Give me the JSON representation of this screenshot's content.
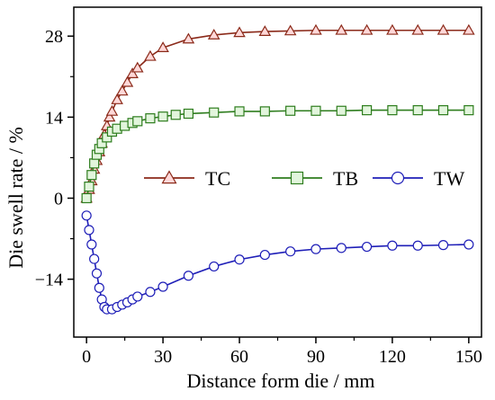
{
  "chart_data": {
    "type": "line",
    "xlabel": "Distance form die / mm",
    "ylabel": "Die swell rate / %",
    "xlim": [
      -5,
      155
    ],
    "ylim": [
      -24,
      33
    ],
    "xticks": [
      0,
      30,
      60,
      90,
      120,
      150
    ],
    "yticks": [
      -14,
      0,
      14,
      28
    ],
    "y_tick_labels": [
      "−14",
      "0",
      "14",
      "28"
    ],
    "grid": false,
    "legend_position": "center",
    "series": [
      {
        "name": "TC",
        "color": "#8B2A1A",
        "marker": "triangle",
        "marker_fill": "#FFD8D8",
        "x": [
          0,
          1,
          2,
          3,
          4,
          5,
          6,
          7,
          8,
          9,
          10,
          12,
          14,
          16,
          18,
          20,
          25,
          30,
          40,
          50,
          60,
          70,
          80,
          90,
          100,
          110,
          120,
          130,
          140,
          150
        ],
        "y": [
          0,
          1.5,
          3,
          5,
          6.5,
          8,
          9.5,
          11,
          12.5,
          14,
          15,
          17,
          18.5,
          20,
          21.5,
          22.5,
          24.5,
          26,
          27.5,
          28.2,
          28.6,
          28.8,
          28.9,
          29,
          29,
          29,
          29,
          29,
          29,
          29
        ]
      },
      {
        "name": "TB",
        "color": "#2E7D1E",
        "marker": "square",
        "marker_fill": "#E2F5DC",
        "x": [
          0,
          1,
          2,
          3,
          4,
          5,
          6,
          8,
          10,
          12,
          15,
          18,
          20,
          25,
          30,
          35,
          40,
          50,
          60,
          70,
          80,
          90,
          100,
          110,
          120,
          130,
          140,
          150
        ],
        "y": [
          0,
          2,
          4,
          6,
          7.5,
          8.5,
          9.5,
          10.5,
          11.5,
          12,
          12.5,
          13,
          13.3,
          13.8,
          14.1,
          14.4,
          14.6,
          14.8,
          15,
          15,
          15.1,
          15.1,
          15.1,
          15.2,
          15.2,
          15.2,
          15.2,
          15.2
        ]
      },
      {
        "name": "TW",
        "color": "#1F1FB8",
        "marker": "circle",
        "marker_fill": "#FFFFFF",
        "x": [
          0,
          1,
          2,
          3,
          4,
          5,
          6,
          7,
          8,
          10,
          12,
          14,
          16,
          18,
          20,
          25,
          30,
          40,
          50,
          60,
          70,
          80,
          90,
          100,
          110,
          120,
          130,
          140,
          150
        ],
        "y": [
          -3,
          -5.5,
          -8,
          -10.5,
          -13,
          -15.5,
          -17.5,
          -18.8,
          -19.2,
          -19.2,
          -18.8,
          -18.4,
          -18,
          -17.5,
          -17,
          -16.2,
          -15.3,
          -13.4,
          -11.8,
          -10.6,
          -9.8,
          -9.2,
          -8.8,
          -8.6,
          -8.4,
          -8.2,
          -8.2,
          -8.1,
          -8
        ]
      }
    ]
  }
}
